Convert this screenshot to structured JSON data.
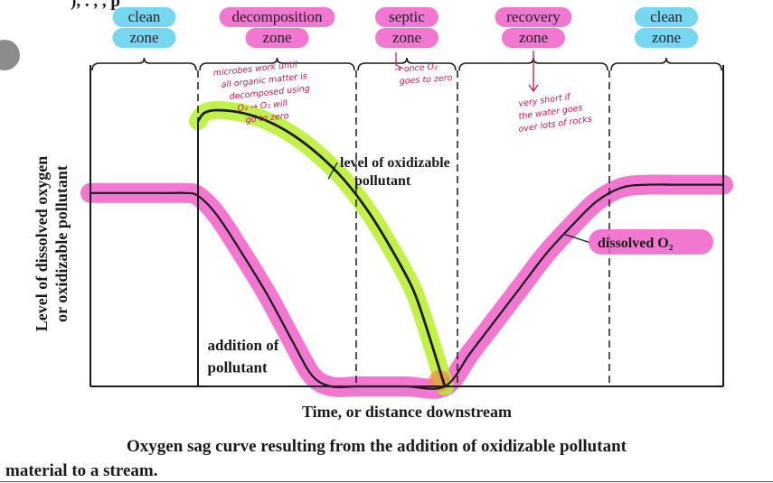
{
  "top_fragment": "), .    ,     , p",
  "colors": {
    "pink": "#ef5fc8",
    "cyan": "#5fd0ef",
    "green": "#b8ee2c",
    "orange": "#f2894a",
    "ink": "#1a1a1a",
    "handwriting": "#c2185b"
  },
  "chart_data": {
    "type": "line",
    "title": "Oxygen sag curve",
    "xlabel": "Time, or distance downstream",
    "ylabel": [
      "Level of dissolved oxygen",
      "or oxidizable pollutant"
    ],
    "xlim": [
      0,
      100
    ],
    "ylim": [
      0,
      100
    ],
    "grid": false,
    "zones": [
      {
        "label": [
          "clean",
          "zone"
        ],
        "highlight": "cyan",
        "start": 0,
        "end": 17
      },
      {
        "label": [
          "decomposition",
          "zone"
        ],
        "highlight": "pink",
        "start": 17,
        "end": 42
      },
      {
        "label": [
          "septic",
          "zone"
        ],
        "highlight": "pink",
        "start": 42,
        "end": 58
      },
      {
        "label": [
          "recovery",
          "zone"
        ],
        "highlight": "pink",
        "start": 58,
        "end": 82
      },
      {
        "label": [
          "clean",
          "zone"
        ],
        "highlight": "cyan",
        "start": 82,
        "end": 100
      }
    ],
    "pollutant_added_at": 17,
    "series": [
      {
        "name": "level of oxidizable pollutant",
        "label": [
          "level of oxidizable",
          "pollutant"
        ],
        "highlight": "green",
        "x": [
          17,
          18,
          20,
          24,
          28,
          32,
          36,
          40,
          44,
          48,
          51,
          53,
          56
        ],
        "y": [
          96,
          99,
          100,
          99,
          96,
          91,
          84,
          75,
          63,
          48,
          35,
          22,
          0
        ]
      },
      {
        "name": "dissolved O2",
        "label": "dissolved O₂",
        "highlight": "pink",
        "x": [
          0,
          12,
          15,
          17,
          20,
          24,
          28,
          32,
          35,
          38,
          42,
          46,
          50,
          56,
          60,
          64,
          68,
          72,
          76,
          80,
          84,
          88,
          92,
          96,
          100
        ],
        "y": [
          70,
          70,
          70,
          69,
          62,
          48,
          33,
          16,
          4,
          0,
          0,
          0,
          0,
          0,
          12,
          24,
          36,
          48,
          58,
          67,
          72,
          73,
          73,
          73,
          73
        ]
      }
    ],
    "annotations": [
      {
        "text": "addition of",
        "x": 18.5,
        "y": 13
      },
      {
        "text": "pollutant",
        "x": 18.5,
        "y": 5
      }
    ],
    "handwritten_notes": {
      "decomposition": [
        "microbes work until",
        "all organic matter is",
        "decomposed using",
        "O₂ → O₂ will",
        "go to zero"
      ],
      "septic": [
        "→ once O₂",
        "goes to zero"
      ],
      "recovery": [
        "very short if",
        "the water goes",
        "over lots of rocks"
      ]
    },
    "caption": {
      "line1": "Oxygen sag curve resulting from the addition of oxidizable pollutant",
      "line2": "material to a stream."
    }
  }
}
